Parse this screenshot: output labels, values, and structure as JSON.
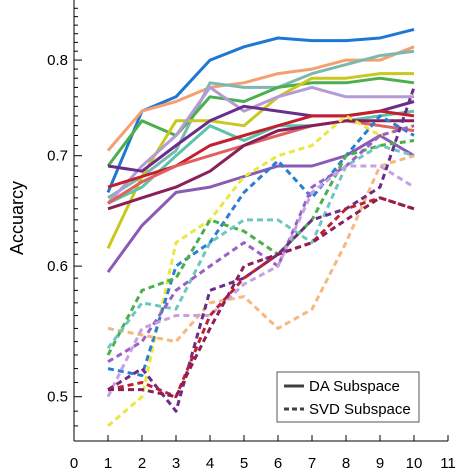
{
  "chart_data": {
    "type": "line",
    "title": "",
    "xlabel": "",
    "ylabel": "Accuarcy",
    "xlim": [
      0,
      11
    ],
    "ylim": [
      0.47,
      0.87
    ],
    "y_scale": "log",
    "grid": false,
    "legend_position": "bottom-right",
    "x_ticks": [
      0,
      1,
      2,
      3,
      4,
      5,
      6,
      7,
      8,
      9,
      10,
      11
    ],
    "y_ticks": [
      0.5,
      0.6,
      0.7,
      0.8
    ],
    "y_tick_labels": [
      "0.5",
      "0.6",
      "0.7",
      "0.8"
    ],
    "legend": [
      {
        "label": "DA Subspace",
        "style": "solid"
      },
      {
        "label": "SVD Subspace",
        "style": "dashed"
      }
    ],
    "x": [
      1,
      2,
      3,
      4,
      5,
      6,
      7,
      8,
      9,
      10
    ],
    "series": [
      {
        "style": "solid",
        "color": "#1f77d4",
        "values": [
          0.665,
          0.745,
          0.76,
          0.8,
          0.815,
          0.825,
          0.822,
          0.822,
          0.825,
          0.835
        ]
      },
      {
        "style": "solid",
        "color": "#f4a070",
        "values": [
          0.705,
          0.745,
          0.755,
          0.77,
          0.775,
          0.785,
          0.79,
          0.8,
          0.8,
          0.815
        ]
      },
      {
        "style": "solid",
        "color": "#7ab8b0",
        "values": [
          0.66,
          0.68,
          0.705,
          0.775,
          0.77,
          0.77,
          0.785,
          0.795,
          0.805,
          0.81
        ]
      },
      {
        "style": "solid",
        "color": "#4cae4c",
        "values": [
          0.69,
          0.735,
          0.72,
          0.76,
          0.755,
          0.77,
          0.775,
          0.775,
          0.78,
          0.775
        ]
      },
      {
        "style": "solid",
        "color": "#c8c81e",
        "values": [
          0.615,
          0.68,
          0.735,
          0.735,
          0.73,
          0.76,
          0.78,
          0.78,
          0.785,
          0.785
        ]
      },
      {
        "style": "solid",
        "color": "#b59ad6",
        "values": [
          0.655,
          0.69,
          0.72,
          0.77,
          0.745,
          0.76,
          0.77,
          0.76,
          0.76,
          0.76
        ]
      },
      {
        "style": "solid",
        "color": "#6a2d8a",
        "values": [
          0.69,
          0.685,
          0.71,
          0.735,
          0.75,
          0.745,
          0.74,
          0.74,
          0.745,
          0.755
        ]
      },
      {
        "style": "solid",
        "color": "#5cc4a8",
        "values": [
          0.655,
          0.67,
          0.7,
          0.73,
          0.715,
          0.73,
          0.73,
          0.735,
          0.74,
          0.745
        ]
      },
      {
        "style": "solid",
        "color": "#c3202e",
        "values": [
          0.67,
          0.68,
          0.69,
          0.71,
          0.72,
          0.73,
          0.74,
          0.74,
          0.745,
          0.74
        ]
      },
      {
        "style": "solid",
        "color": "#e06060",
        "values": [
          0.655,
          0.675,
          0.69,
          0.7,
          0.71,
          0.72,
          0.73,
          0.735,
          0.73,
          0.725
        ]
      },
      {
        "style": "solid",
        "color": "#8b1f5a",
        "values": [
          0.65,
          0.66,
          0.67,
          0.685,
          0.71,
          0.725,
          0.73,
          0.735,
          0.735,
          0.735
        ]
      },
      {
        "style": "solid",
        "color": "#8a5ab4",
        "values": [
          0.595,
          0.635,
          0.665,
          0.67,
          0.68,
          0.69,
          0.69,
          0.7,
          0.72,
          0.7
        ]
      },
      {
        "style": "dashed",
        "color": "#e8e840",
        "values": [
          0.48,
          0.5,
          0.62,
          0.64,
          0.68,
          0.7,
          0.71,
          0.74,
          0.72,
          0.73
        ]
      },
      {
        "style": "dashed",
        "color": "#2a7fd4",
        "values": [
          0.52,
          0.515,
          0.6,
          0.62,
          0.665,
          0.695,
          0.66,
          0.7,
          0.74,
          0.72
        ]
      },
      {
        "style": "dashed",
        "color": "#f4b880",
        "values": [
          0.55,
          0.545,
          0.54,
          0.57,
          0.575,
          0.55,
          0.565,
          0.62,
          0.69,
          0.7
        ]
      },
      {
        "style": "dashed",
        "color": "#4cae4c",
        "values": [
          0.53,
          0.58,
          0.59,
          0.64,
          0.63,
          0.61,
          0.64,
          0.7,
          0.71,
          0.715
        ]
      },
      {
        "style": "dashed",
        "color": "#6ec8c0",
        "values": [
          0.535,
          0.57,
          0.565,
          0.62,
          0.64,
          0.64,
          0.62,
          0.69,
          0.71,
          0.7
        ]
      },
      {
        "style": "dashed",
        "color": "#9a60c8",
        "values": [
          0.525,
          0.54,
          0.58,
          0.6,
          0.62,
          0.6,
          0.67,
          0.69,
          0.72,
          0.73
        ]
      },
      {
        "style": "dashed",
        "color": "#c8a0e0",
        "values": [
          0.5,
          0.55,
          0.56,
          0.56,
          0.585,
          0.6,
          0.665,
          0.69,
          0.69,
          0.67
        ]
      },
      {
        "style": "dashed",
        "color": "#6a2d8a",
        "values": [
          0.505,
          0.52,
          0.49,
          0.58,
          0.59,
          0.61,
          0.64,
          0.65,
          0.67,
          0.77
        ]
      },
      {
        "style": "dashed",
        "color": "#c3202e",
        "values": [
          0.505,
          0.51,
          0.5,
          0.56,
          0.59,
          0.61,
          0.62,
          0.65,
          0.66,
          0.65
        ]
      },
      {
        "style": "dashed",
        "color": "#8b1f5a",
        "values": [
          0.505,
          0.505,
          0.5,
          0.55,
          0.6,
          0.61,
          0.62,
          0.64,
          0.66,
          0.65
        ]
      }
    ]
  }
}
